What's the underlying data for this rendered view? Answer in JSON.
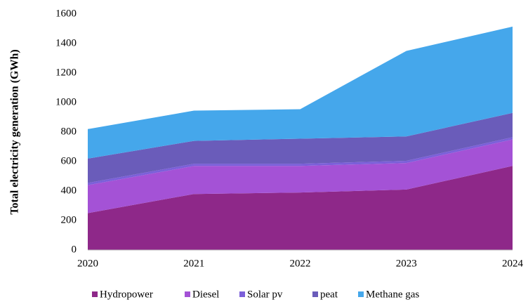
{
  "chart_data": {
    "type": "stacked_area",
    "y_axis_label": "Total electricity generation (GWh)",
    "categories": [
      "2020",
      "2021",
      "2022",
      "2023",
      "2024"
    ],
    "series": [
      {
        "name": "Hydropower",
        "color": "#8e2889",
        "values": [
          250,
          380,
          390,
          410,
          570
        ]
      },
      {
        "name": "Diesel",
        "color": "#a452d6",
        "values": [
          190,
          190,
          180,
          180,
          180
        ]
      },
      {
        "name": "Solar pv",
        "color": "#7b5fd9",
        "values": [
          15,
          15,
          15,
          15,
          15
        ]
      },
      {
        "name": "peat",
        "color": "#6a5cba",
        "values": [
          165,
          155,
          170,
          165,
          165
        ]
      },
      {
        "name": "Methane gas",
        "color": "#45a7eb",
        "values": [
          200,
          205,
          200,
          580,
          585
        ]
      }
    ],
    "ylim": [
      0,
      1600
    ],
    "yticks": [
      0,
      200,
      400,
      600,
      800,
      1000,
      1200,
      1400,
      1600
    ],
    "legend": "bottom"
  }
}
